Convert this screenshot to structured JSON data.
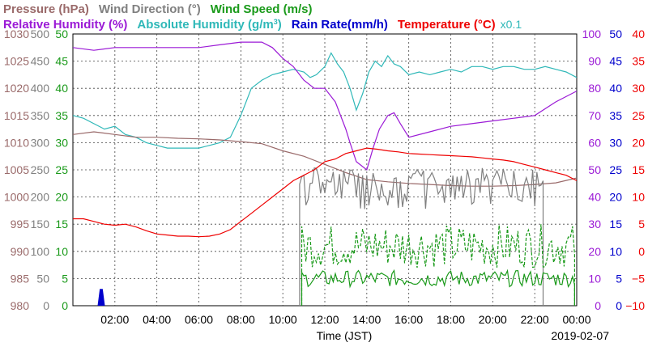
{
  "chart_data": {
    "type": "line",
    "title_row1": [
      {
        "text": "Pressure (hPa)",
        "color": "#9a6a6a"
      },
      {
        "text": "Wind Direction (°)",
        "color": "#808080"
      },
      {
        "text": "Wind Speed (m/s)",
        "color": "#1a9a1a"
      }
    ],
    "title_row2": [
      {
        "text": "Relative Humidity (%)",
        "color": "#9b1ad6"
      },
      {
        "text": "Absolute Humidity (g/m",
        "sup": "3",
        "tail": ")",
        "color": "#2fb8b8"
      },
      {
        "text": "Rain Rate(mm/h)",
        "color": "#0000cc"
      },
      {
        "text": "Temperature (°C)",
        "color": "#ee0000"
      }
    ],
    "abs_hum_scale_note": "x0.1",
    "xlabel": "Time (JST)",
    "date_label": "2019-02-07",
    "x_ticks": [
      "02:00",
      "04:00",
      "06:00",
      "08:00",
      "10:00",
      "12:00",
      "14:00",
      "16:00",
      "18:00",
      "20:00",
      "22:00",
      "00:00"
    ],
    "xlim_hours": [
      0,
      24
    ],
    "axes": {
      "pressure": {
        "color": "#9a6a6a",
        "ticks": [
          "980",
          "985",
          "990",
          "995",
          "1000",
          "1005",
          "1010",
          "1015",
          "1020",
          "1025",
          "1030"
        ],
        "ylim": [
          980,
          1030
        ]
      },
      "wind_dir": {
        "color": "#808080",
        "ticks": [
          "0",
          "50",
          "100",
          "150",
          "200",
          "250",
          "300",
          "350",
          "400",
          "450",
          "500"
        ],
        "ylim": [
          0,
          500
        ]
      },
      "wind_speed": {
        "color": "#1a9a1a",
        "ticks": [
          "0",
          "5",
          "10",
          "15",
          "20",
          "25",
          "30",
          "35",
          "40",
          "45",
          "50"
        ],
        "ylim": [
          0,
          50
        ]
      },
      "humidity": {
        "color": "#9b1ad6",
        "ticks": [
          "0",
          "10",
          "20",
          "30",
          "40",
          "50",
          "60",
          "70",
          "80",
          "90",
          "100"
        ],
        "ylim": [
          0,
          100
        ]
      },
      "rain": {
        "color": "#0000cc",
        "ticks": [
          "0",
          "5",
          "10",
          "15",
          "20",
          "25",
          "30",
          "35",
          "40",
          "45",
          "50"
        ],
        "ylim": [
          0,
          50
        ]
      },
      "temperature": {
        "color": "#ee0000",
        "ticks": [
          "−10",
          "−5",
          "0",
          "5",
          "10",
          "15",
          "20",
          "25",
          "30",
          "35",
          "40"
        ],
        "ylim": [
          -10,
          40
        ]
      }
    },
    "series": [
      {
        "key": "abs_humidity_x0.1",
        "axis": "humidity",
        "color": "#2fb8b8",
        "x": [
          0,
          0.5,
          1,
          1.5,
          2,
          2.5,
          3,
          3.5,
          4,
          4.5,
          5,
          5.5,
          6,
          6.5,
          7,
          7.5,
          8,
          8.5,
          9,
          9.5,
          10,
          10.5,
          11,
          11.3,
          11.6,
          12,
          12.3,
          12.6,
          12.9,
          13.2,
          13.5,
          13.8,
          14.1,
          14.4,
          14.7,
          15,
          15.3,
          15.6,
          16,
          16.5,
          17,
          17.5,
          18,
          18.5,
          19,
          19.5,
          20,
          20.5,
          21,
          21.5,
          22,
          22.5,
          23,
          23.5,
          24
        ],
        "y": [
          70,
          69,
          67,
          65,
          66,
          63,
          62,
          60,
          59,
          58,
          58,
          58,
          58,
          59,
          60,
          62,
          70,
          80,
          83,
          85,
          86,
          87,
          86,
          84,
          85,
          88,
          93,
          89,
          86,
          80,
          72,
          78,
          86,
          90,
          88,
          92,
          89,
          88,
          85,
          86,
          85,
          86,
          87,
          86,
          88,
          88,
          87,
          88,
          88,
          87,
          87,
          88,
          87,
          86,
          84
        ]
      },
      {
        "key": "relative_humidity",
        "axis": "humidity",
        "color": "#9b1ad6",
        "x": [
          0,
          1,
          2,
          3,
          4,
          5,
          6,
          7,
          8,
          9,
          9.5,
          10,
          10.5,
          11,
          11.5,
          12,
          12.5,
          13,
          13.2,
          13.5,
          14,
          14.3,
          14.6,
          15,
          15.3,
          15.6,
          16,
          17,
          18,
          19,
          20,
          21,
          22,
          23,
          24
        ],
        "y": [
          95,
          94,
          95,
          95,
          95,
          95,
          95,
          96,
          97,
          97,
          95,
          91,
          88,
          83,
          80,
          80,
          75,
          65,
          60,
          53,
          50,
          58,
          65,
          70,
          71,
          67,
          62,
          64,
          66,
          67,
          68,
          69,
          70,
          75,
          79
        ]
      },
      {
        "key": "pressure",
        "axis": "pressure",
        "color": "#9a6a6a",
        "x": [
          0,
          1,
          2,
          3,
          4,
          5,
          6,
          7,
          8,
          9,
          10,
          11,
          12,
          13,
          14,
          15,
          16,
          17,
          18,
          19,
          20,
          21,
          22,
          23,
          24
        ],
        "y": [
          1011.5,
          1012,
          1011.5,
          1011,
          1011,
          1010.8,
          1010.7,
          1010.5,
          1010.2,
          1009.8,
          1008.5,
          1007.5,
          1006,
          1004.5,
          1003.2,
          1002.8,
          1002.5,
          1002.3,
          1002.1,
          1002,
          1002,
          1002.1,
          1002.3,
          1002.6,
          1003.5
        ]
      },
      {
        "key": "wind_direction",
        "axis": "wind_dir",
        "color": "#808080",
        "samples": true,
        "x_range": [
          10.8,
          22.4
        ],
        "base": 230,
        "amp": 35,
        "pre": 0,
        "post": 0
      },
      {
        "key": "temperature",
        "axis": "temperature",
        "color": "#ee0000",
        "x": [
          0,
          0.5,
          1,
          1.5,
          2,
          2.5,
          3,
          3.5,
          4,
          4.5,
          5,
          5.5,
          6,
          6.5,
          7,
          7.5,
          8,
          8.5,
          9,
          9.5,
          10,
          10.5,
          11,
          11.5,
          12,
          12.5,
          13,
          13.5,
          14,
          14.5,
          15,
          15.5,
          16,
          16.5,
          17,
          17.5,
          18,
          18.5,
          19,
          19.5,
          20,
          20.5,
          21,
          21.5,
          22,
          22.5,
          23,
          23.5,
          24
        ],
        "y": [
          6,
          6,
          5.5,
          5,
          4.8,
          5,
          4.5,
          3.8,
          3.2,
          3,
          2.8,
          2.8,
          2.7,
          2.8,
          3.2,
          4,
          5.5,
          7,
          8.5,
          10,
          11.5,
          13,
          14,
          15,
          16.5,
          17,
          18,
          18.5,
          19,
          18.8,
          18.5,
          18.3,
          18,
          17.9,
          17.8,
          17.7,
          17.6,
          17.5,
          17.4,
          17.2,
          17,
          16.8,
          16.5,
          16,
          15.5,
          15,
          14.5,
          14,
          13
        ]
      },
      {
        "key": "wind_speed_gust",
        "axis": "wind_speed",
        "color": "#1a9a1a",
        "dashed": true,
        "samples": true,
        "x_range": [
          10.9,
          23.9
        ],
        "base": 11,
        "amp": 4
      },
      {
        "key": "wind_speed_mean",
        "axis": "wind_speed",
        "color": "#1a9a1a",
        "samples": true,
        "x_range": [
          10.9,
          23.9
        ],
        "base": 5,
        "amp": 1.5
      },
      {
        "key": "rain_rate",
        "axis": "rain",
        "color": "#0000cc",
        "fill": true,
        "x": [
          1.2,
          1.3,
          1.4,
          1.5
        ],
        "y": [
          0,
          3,
          3,
          0
        ]
      }
    ]
  }
}
